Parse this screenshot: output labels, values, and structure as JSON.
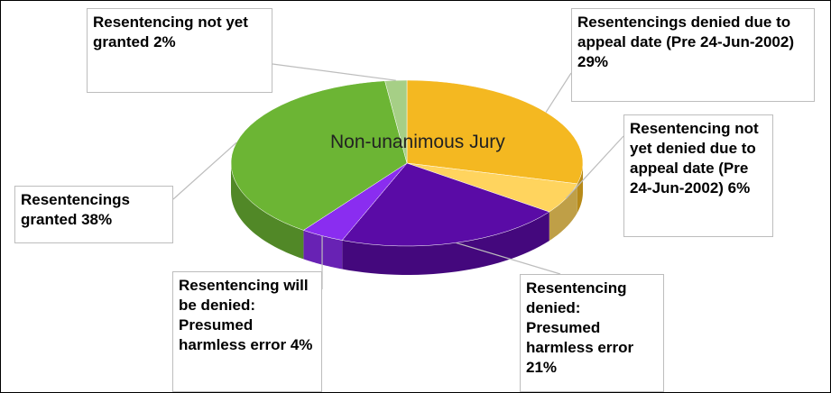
{
  "chart_data": {
    "type": "pie",
    "title": "Non-unanimous Jury",
    "categories": [
      "Resentencings denied due to appeal date (Pre 24-Jun-2002)",
      "Resentencing not yet denied due to appeal date (Pre 24-Jun-2002)",
      "Resentencing denied: Presumed harmless error",
      "Resentencing will be denied: Presumed harmless error",
      "Resentencings granted",
      "Resentencing not yet granted"
    ],
    "values": [
      29,
      6,
      21,
      4,
      38,
      2
    ],
    "value_labels": [
      "29%",
      "6%",
      "21%",
      "4%",
      "38%",
      "2%"
    ],
    "colors": [
      "#f4b821",
      "#ffd45e",
      "#5a0ba6",
      "#8a2df0",
      "#6cb534",
      "#a6cf86"
    ]
  }
}
